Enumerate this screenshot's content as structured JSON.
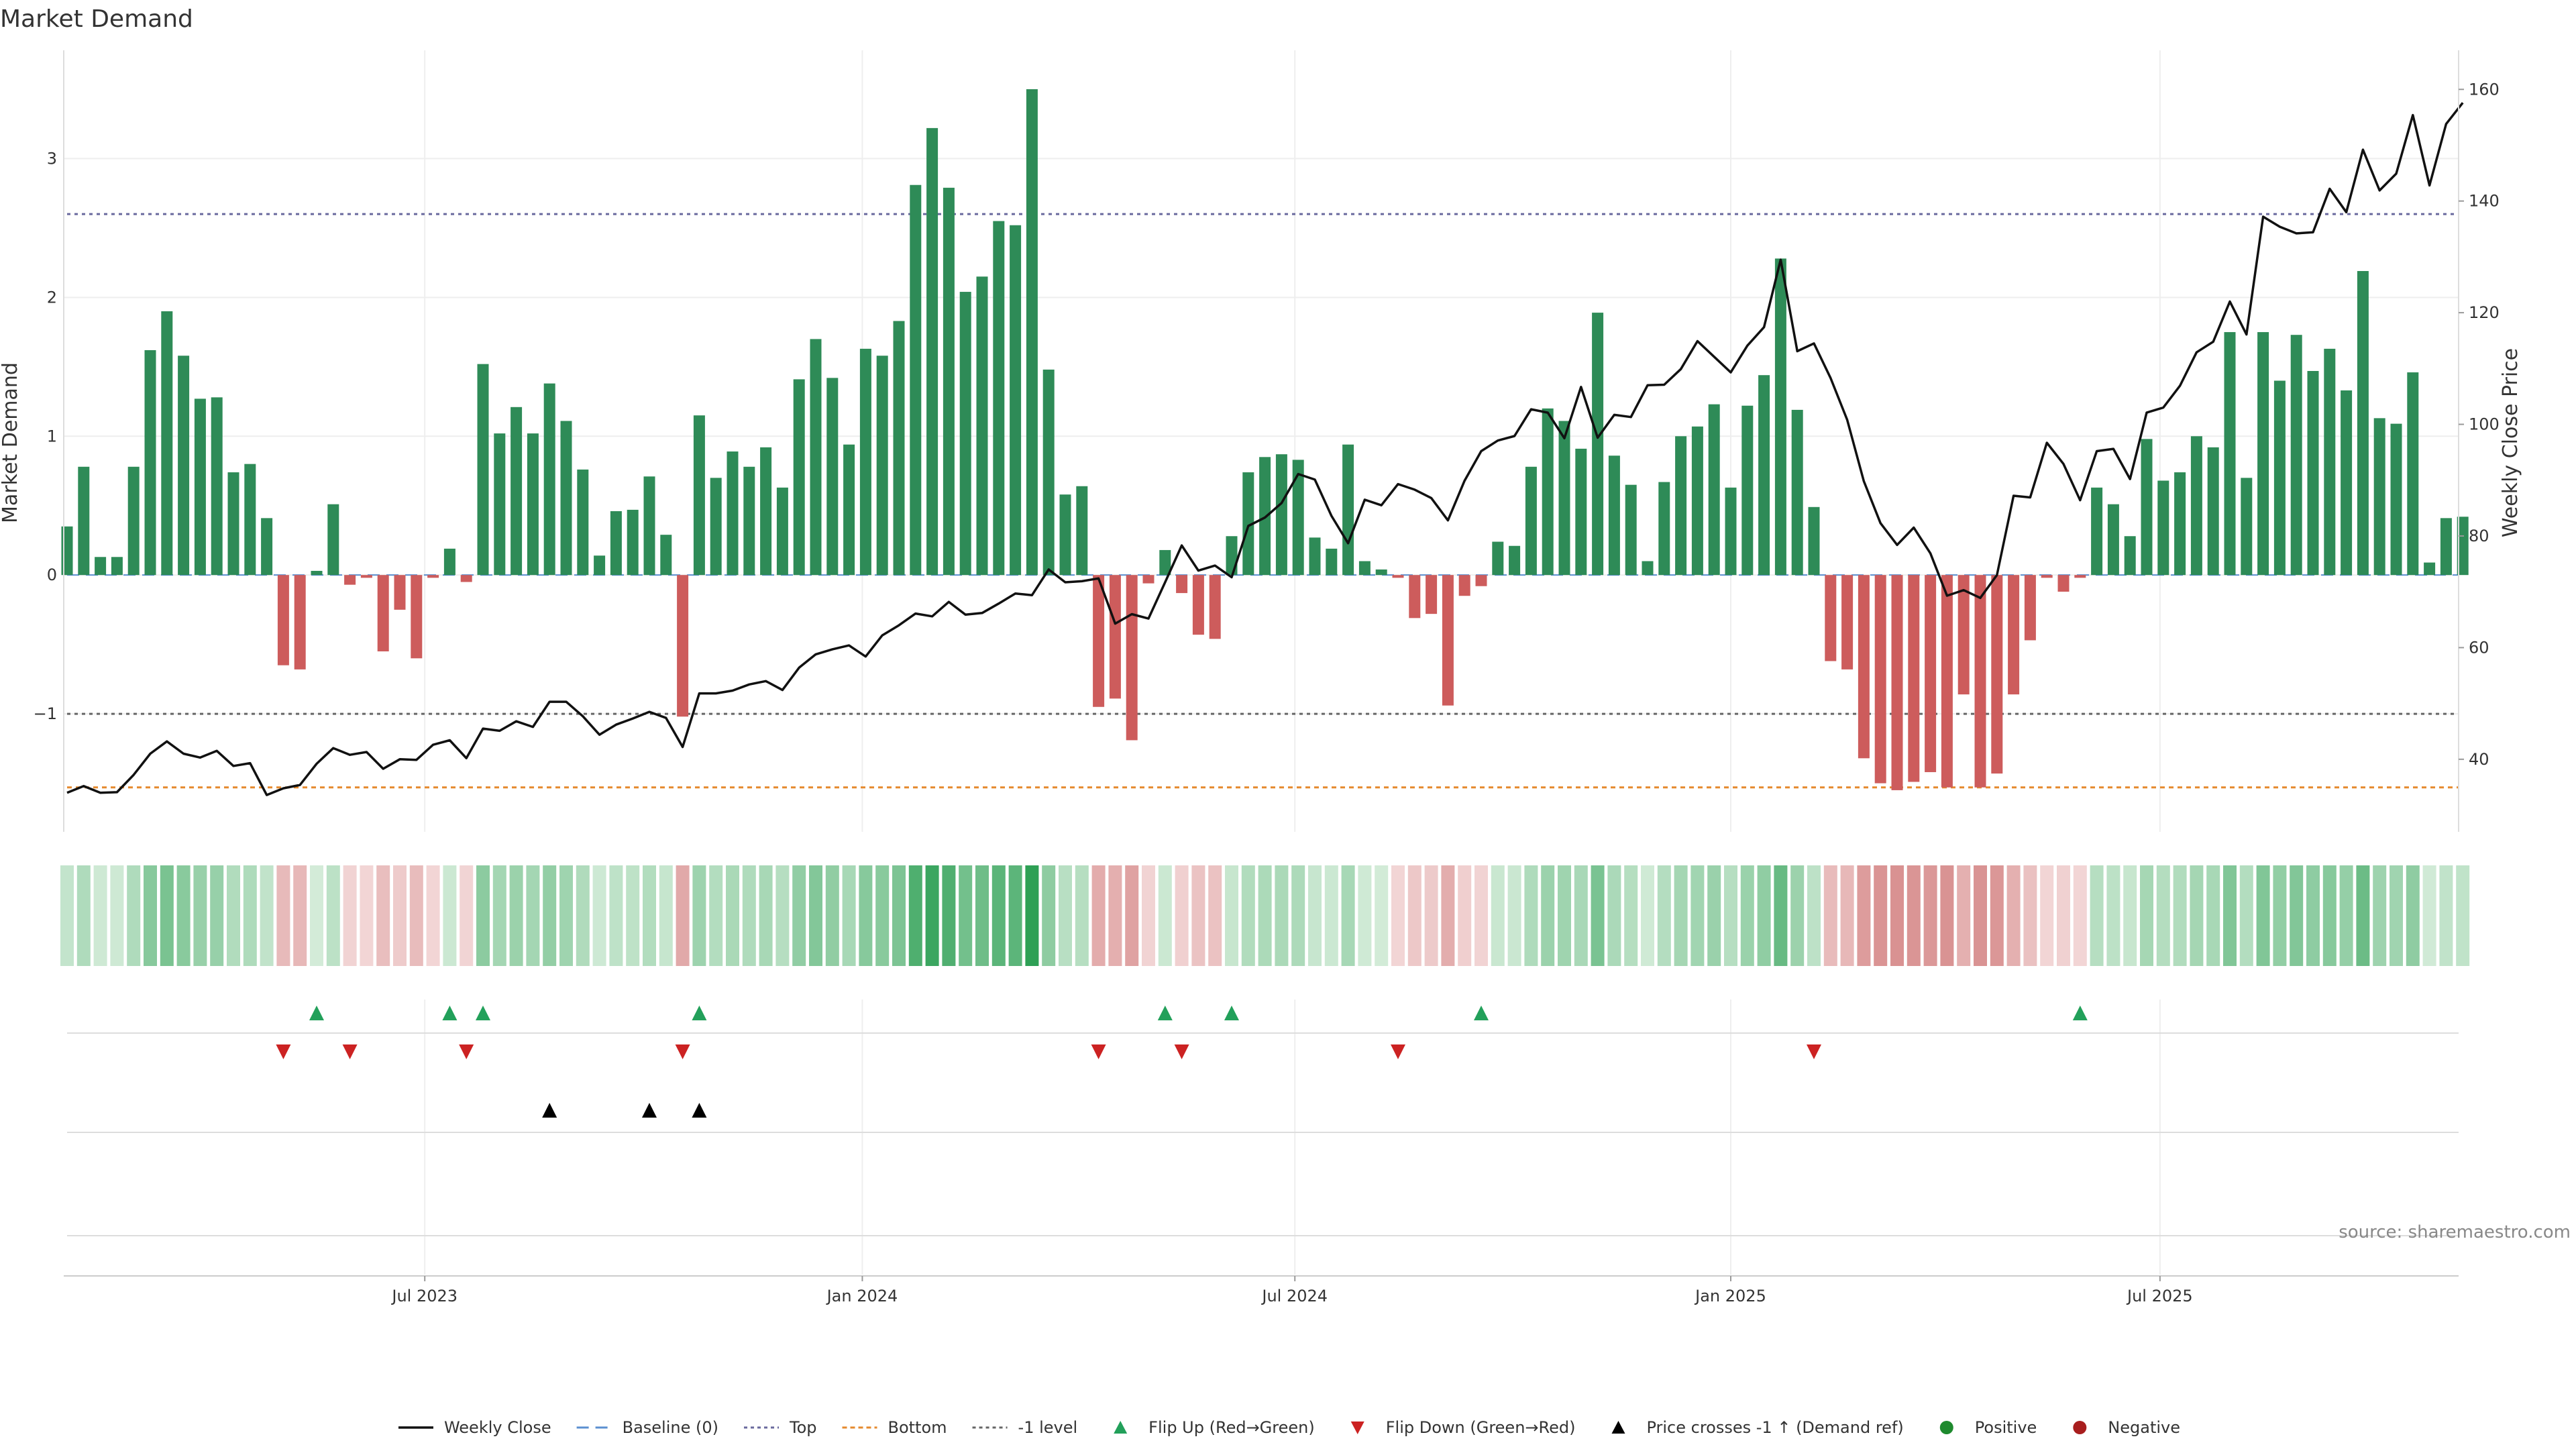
{
  "colors": {
    "positive": "#2e8b57",
    "negative": "#cd5c5c",
    "line": "#111111",
    "top": "#6a6a9e",
    "bottom": "#e58a2e",
    "minus_one": "#666666",
    "flip_up": "#22a05a",
    "flip_down": "#cc2222",
    "cross": "#000000",
    "positive_dot": "#1e8a2e",
    "negative_dot": "#a81e1e",
    "grid": "#eeeeee",
    "baseline": "#5b8fd0"
  },
  "chart_data": {
    "type": "bar",
    "title": "Market Demand",
    "ylabel": "Market Demand",
    "y2label": "Weekly Close Price",
    "ylim": [
      -1.85,
      3.78
    ],
    "y2lim": [
      27,
      167
    ],
    "yticks": [
      "3",
      "2",
      "1",
      "0",
      "−1"
    ],
    "yticks_values": [
      3,
      2,
      1,
      0,
      -1
    ],
    "y2ticks": [
      "160",
      "140",
      "120",
      "100",
      "80",
      "60",
      "40"
    ],
    "y2ticks_values": [
      160,
      140,
      120,
      100,
      80,
      60,
      40
    ],
    "xticks": [
      "Jul 2023",
      "Jan 2024",
      "Jul 2024",
      "Jan 2025",
      "Jul 2025"
    ],
    "xticks_week_index": [
      21.5,
      47.8,
      73.8,
      100,
      125.8
    ],
    "reference_lines": {
      "top": 2.6,
      "bottom": -1.53,
      "minus_one": -1.0,
      "baseline": 0
    },
    "series": [
      {
        "name": "Market Demand",
        "kind": "bar",
        "values": [
          0.35,
          0.78,
          0.13,
          0.13,
          0.78,
          1.62,
          1.9,
          1.58,
          1.27,
          1.28,
          0.74,
          0.8,
          0.41,
          -0.65,
          -0.68,
          0.03,
          0.51,
          -0.07,
          -0.02,
          -0.55,
          -0.25,
          -0.6,
          -0.02,
          0.19,
          -0.05,
          1.52,
          1.02,
          1.21,
          1.02,
          1.38,
          1.11,
          0.76,
          0.14,
          0.46,
          0.47,
          0.71,
          0.29,
          -1.02,
          1.15,
          0.7,
          0.89,
          0.78,
          0.92,
          0.63,
          1.41,
          1.7,
          1.42,
          0.94,
          1.63,
          1.58,
          1.83,
          2.81,
          3.22,
          2.79,
          2.04,
          2.15,
          2.55,
          2.52,
          3.5,
          1.48,
          0.58,
          0.64,
          -0.95,
          -0.89,
          -1.19,
          -0.06,
          0.18,
          -0.13,
          -0.43,
          -0.46,
          0.28,
          0.74,
          0.85,
          0.87,
          0.83,
          0.27,
          0.19,
          0.94,
          0.1,
          0.04,
          -0.02,
          -0.31,
          -0.28,
          -0.94,
          -0.15,
          -0.08,
          0.24,
          0.21,
          0.78,
          1.2,
          1.11,
          0.91,
          1.89,
          0.86,
          0.65,
          0.1,
          0.67,
          1.0,
          1.07,
          1.23,
          0.63,
          1.22,
          1.44,
          2.28,
          1.19,
          0.49,
          -0.62,
          -0.68,
          -1.32,
          -1.5,
          -1.55,
          -1.49,
          -1.42,
          -1.53,
          -0.86,
          -1.53,
          -1.43,
          -0.86,
          -0.47,
          -0.02,
          -0.12,
          -0.02,
          0.63,
          0.51,
          0.28,
          0.98,
          0.68,
          0.74,
          1.0,
          0.92,
          1.75,
          0.7,
          1.75,
          1.4,
          1.73,
          1.47,
          1.63,
          1.33,
          2.19,
          1.13,
          1.09,
          1.46,
          0.09,
          0.41,
          0.42
        ]
      },
      {
        "name": "Weekly Close",
        "kind": "line",
        "axis": "right",
        "values": [
          34,
          35.2,
          34,
          34.1,
          37.2,
          41,
          43.2,
          41,
          40.3,
          41.5,
          38.8,
          39.3,
          33.6,
          34.8,
          35.4,
          39.2,
          42,
          40.8,
          41.3,
          38.3,
          40,
          39.9,
          42.6,
          43.4,
          40.2,
          45.5,
          45.1,
          46.8,
          45.8,
          50.3,
          50.3,
          47.7,
          44.4,
          46.2,
          47.3,
          48.5,
          47.4,
          42.2,
          51.8,
          51.8,
          52.3,
          53.4,
          54,
          52.4,
          56.4,
          58.8,
          59.7,
          60.4,
          58.4,
          62.2,
          64,
          66.1,
          65.6,
          68.2,
          65.9,
          66.2,
          67.9,
          69.7,
          69.4,
          74,
          71.7,
          71.9,
          72.4,
          64.3,
          66,
          65.2,
          71.7,
          78.3,
          73.8,
          74.7,
          72.6,
          81.8,
          83.3,
          85.9,
          91.1,
          90.1,
          83.6,
          78.7,
          86.5,
          85.5,
          89.3,
          88.3,
          86.8,
          82.8,
          89.9,
          95.2,
          97.1,
          97.9,
          102.7,
          102.1,
          97.5,
          106.7,
          97.6,
          101.7,
          101.3,
          107,
          107.1,
          109.9,
          114.9,
          112.1,
          109.3,
          114.1,
          117.4,
          129.5,
          113.1,
          114.5,
          108.3,
          100.8,
          89.8,
          82.3,
          78.4,
          81.5,
          76.9,
          69.3,
          70.3,
          68.9,
          73,
          87.2,
          86.9,
          96.7,
          92.9,
          86.4,
          95.2,
          95.6,
          90.2,
          102.1,
          103,
          106.9,
          112.9,
          114.8,
          122,
          116.1,
          137.2,
          135.4,
          134.2,
          134.4,
          142.2,
          138,
          149.2,
          141.9,
          144.9,
          155.4,
          142.8,
          153.8,
          157.6
        ]
      }
    ],
    "markers": {
      "flip_up_weeks": [
        15,
        23,
        25,
        38,
        66,
        70,
        85,
        121
      ],
      "flip_down_weeks": [
        13,
        17,
        24,
        37,
        62,
        67,
        80,
        105
      ],
      "cross_weeks": [
        29,
        35,
        38
      ]
    },
    "legend": [
      {
        "label": "Weekly Close",
        "symbol": "line"
      },
      {
        "label": "Baseline (0)",
        "symbol": "baseline"
      },
      {
        "label": "Top",
        "symbol": "top"
      },
      {
        "label": "Bottom",
        "symbol": "bottom"
      },
      {
        "label": "-1 level",
        "symbol": "minus_one"
      },
      {
        "label": "Flip Up (Red→Green)",
        "symbol": "up"
      },
      {
        "label": "Flip Down (Green→Red)",
        "symbol": "down"
      },
      {
        "label": "Price crosses -1 ↑ (Demand ref)",
        "symbol": "cross"
      },
      {
        "label": "Positive",
        "symbol": "pos"
      },
      {
        "label": "Negative",
        "symbol": "neg"
      }
    ],
    "legend_position": "bottom-center",
    "source": "source: sharemaestro.com"
  }
}
